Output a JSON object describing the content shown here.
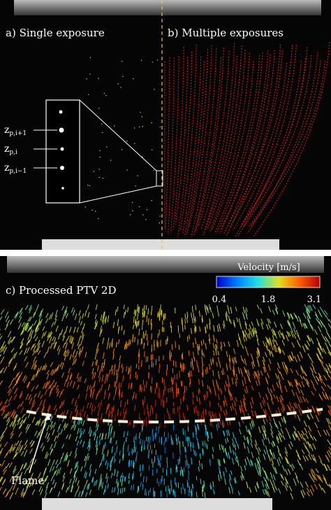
{
  "panel_a": {
    "label": "a) Single exposure",
    "markers": [
      {
        "main": "z",
        "sub": "p,i+1"
      },
      {
        "main": "z",
        "sub": "p,i"
      },
      {
        "main": "z",
        "sub": "p,i−1"
      }
    ]
  },
  "panel_b": {
    "label": "b) Multiple exposures"
  },
  "panel_c": {
    "label": "c) Processed PTV 2D",
    "colorbar": {
      "title": "Velocity [m/s]",
      "ticks": [
        "0.4",
        "1.8",
        "3.1"
      ]
    },
    "annotation": "Flame"
  }
}
